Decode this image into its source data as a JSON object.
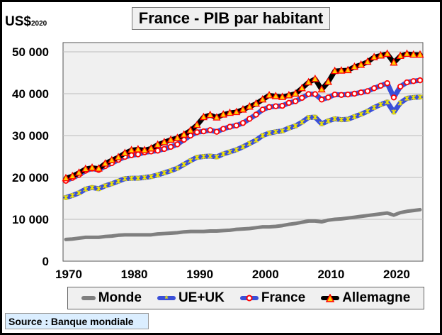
{
  "chart_data": {
    "type": "line",
    "title": "France - PIB par habitant",
    "ylabel": "US$",
    "ylabel_sub": "2020",
    "xlabel": "",
    "xlim": [
      1970,
      2024
    ],
    "ylim": [
      0,
      50000
    ],
    "yticks": [
      0,
      10000,
      20000,
      30000,
      40000,
      50000
    ],
    "ytick_labels": [
      "0",
      "10 000",
      "20 000",
      "30 000",
      "40 000",
      "50 000"
    ],
    "xticks": [
      1970,
      1980,
      1990,
      2000,
      2010,
      2020
    ],
    "xtick_labels": [
      "1970",
      "1980",
      "1990",
      "2000",
      "2010",
      "2020"
    ],
    "grid": true,
    "legend_placement": "bottom",
    "x_start": 1970,
    "series": [
      {
        "name": "Monde",
        "color": "#7f7f7f",
        "marker": "none",
        "values": [
          5200,
          5300,
          5500,
          5700,
          5700,
          5700,
          5900,
          6000,
          6200,
          6300,
          6300,
          6300,
          6300,
          6300,
          6500,
          6600,
          6700,
          6800,
          7000,
          7100,
          7100,
          7100,
          7200,
          7200,
          7300,
          7400,
          7600,
          7700,
          7800,
          8000,
          8200,
          8200,
          8300,
          8500,
          8800,
          9000,
          9300,
          9600,
          9600,
          9400,
          9800,
          10000,
          10100,
          10300,
          10500,
          10700,
          10900,
          11100,
          11300,
          11500,
          11000,
          11600,
          11900,
          12100,
          12300
        ]
      },
      {
        "name": "UE+UK",
        "color": "#3a4fd8",
        "marker": "asterisk",
        "marker_color": "#f2e600",
        "values": [
          15200,
          15700,
          16300,
          17200,
          17600,
          17300,
          18000,
          18500,
          19100,
          19700,
          19800,
          19800,
          20000,
          20200,
          20600,
          21100,
          21600,
          22200,
          23100,
          24000,
          24800,
          25000,
          25100,
          24900,
          25600,
          26100,
          26600,
          27300,
          28100,
          28900,
          30000,
          30600,
          30900,
          31100,
          31800,
          32300,
          33200,
          34300,
          34400,
          32800,
          33500,
          34000,
          33800,
          33900,
          34500,
          35100,
          35800,
          36700,
          37400,
          38000,
          35600,
          37800,
          38900,
          39100,
          39200
        ]
      },
      {
        "name": "France",
        "color": "#3a4fd8",
        "marker": "circle",
        "marker_color": "#ff0000",
        "values": [
          19200,
          19900,
          20600,
          21600,
          22100,
          21800,
          22700,
          23400,
          24200,
          24900,
          25300,
          25500,
          26000,
          26200,
          26400,
          26800,
          27300,
          27900,
          29000,
          30000,
          30800,
          31000,
          31300,
          30900,
          31600,
          32100,
          32400,
          33000,
          34000,
          35000,
          36200,
          36800,
          37000,
          37100,
          37800,
          38200,
          39000,
          39900,
          39900,
          38600,
          39100,
          39800,
          39700,
          39800,
          40000,
          40300,
          40600,
          41300,
          41900,
          42500,
          39100,
          41700,
          42700,
          43000,
          43200
        ]
      },
      {
        "name": "Allemagne",
        "color": "#000000",
        "marker": "triangle",
        "marker_color": "#ffd000",
        "values": [
          19800,
          20300,
          21100,
          22000,
          22300,
          22100,
          23300,
          24100,
          24800,
          25800,
          26500,
          26700,
          26500,
          26900,
          27800,
          28400,
          29000,
          29400,
          30200,
          31200,
          32500,
          34400,
          34900,
          34300,
          35000,
          35400,
          35600,
          36200,
          36900,
          37600,
          38600,
          39600,
          39400,
          39200,
          39600,
          40000,
          41300,
          42700,
          43500,
          41000,
          42800,
          45400,
          45500,
          45600,
          46400,
          46900,
          47600,
          48700,
          49100,
          49500,
          47400,
          49000,
          49500,
          49300,
          49300
        ]
      }
    ],
    "source": "Source : Banque mondiale"
  }
}
